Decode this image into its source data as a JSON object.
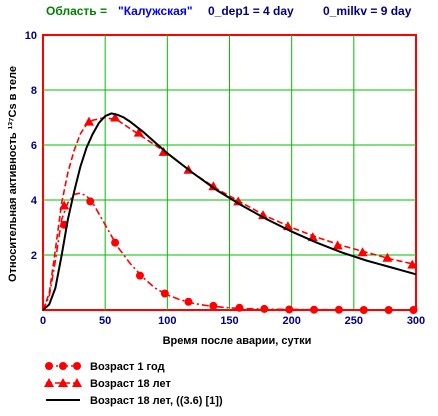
{
  "header": {
    "region_label": "Область = ",
    "region_value": "\"Калужская\"",
    "dep_label": "0_dep1 = 4 day",
    "milk_label": "0_milkv = 9 day"
  },
  "colors": {
    "header_label": "#008000",
    "header_value": "#0000ff",
    "header_param": "#000080",
    "axis_ticks": "#000080",
    "grid": "#00c000",
    "frame": "#ff0000",
    "series_red": "#ff0000",
    "series_black": "#000000"
  },
  "chart_data": {
    "type": "line",
    "xlabel": "Время после аварии, сутки",
    "ylabel": "Относительная активность ¹³⁷Cs в теле",
    "xlim": [
      0,
      300
    ],
    "ylim": [
      0,
      10
    ],
    "x_ticks": [
      0,
      50,
      100,
      150,
      200,
      250,
      300
    ],
    "y_ticks": [
      2,
      4,
      6,
      8,
      10
    ],
    "grid": true,
    "legend_position": "bottom",
    "series": [
      {
        "name": "Возраст 1 год",
        "style": "dash-dot",
        "marker": "circle",
        "color": "#ff0000",
        "x": [
          0,
          5,
          10,
          15,
          20,
          25,
          30,
          35,
          40,
          50,
          60,
          70,
          80,
          90,
          100,
          110,
          120,
          130,
          140,
          150,
          160,
          180,
          200,
          220,
          240,
          260,
          280,
          300
        ],
        "y": [
          0,
          0.5,
          1.8,
          3.3,
          3.9,
          4.2,
          4.25,
          4.15,
          3.9,
          3.1,
          2.3,
          1.7,
          1.2,
          0.8,
          0.55,
          0.38,
          0.25,
          0.17,
          0.12,
          0.08,
          0.05,
          0.03,
          0.02,
          0.01,
          0.01,
          0.0,
          0.0,
          0.0
        ],
        "marker_x": [
          17,
          38,
          58,
          78,
          98,
          117,
          137,
          158,
          178,
          198,
          218,
          238,
          258,
          278,
          298
        ],
        "marker_y": [
          3.1,
          3.95,
          2.45,
          1.25,
          0.6,
          0.3,
          0.15,
          0.08,
          0.04,
          0.02,
          0.01,
          0.01,
          0.0,
          0.0,
          0.0
        ]
      },
      {
        "name": "Возраст 18 лет",
        "style": "dash",
        "marker": "triangle",
        "color": "#ff0000",
        "x": [
          0,
          5,
          10,
          15,
          20,
          25,
          30,
          35,
          40,
          50,
          60,
          70,
          80,
          90,
          100,
          120,
          140,
          160,
          180,
          200,
          220,
          240,
          260,
          280,
          300
        ],
        "y": [
          0,
          0.6,
          2.2,
          3.9,
          5.0,
          5.8,
          6.4,
          6.75,
          6.9,
          7.0,
          6.9,
          6.6,
          6.3,
          6.0,
          5.7,
          5.0,
          4.4,
          3.9,
          3.4,
          3.0,
          2.65,
          2.35,
          2.1,
          1.85,
          1.65
        ],
        "marker_x": [
          17,
          37,
          58,
          77,
          97,
          117,
          137,
          157,
          177,
          197,
          217,
          237,
          257,
          277,
          297
        ],
        "marker_y": [
          3.8,
          6.85,
          7.0,
          6.45,
          5.75,
          5.1,
          4.5,
          3.95,
          3.45,
          3.05,
          2.65,
          2.35,
          2.1,
          1.9,
          1.65
        ]
      },
      {
        "name": "Возраст 18 лет,   ((3.6) [1])",
        "style": "solid",
        "marker": "none",
        "color": "#000000",
        "x": [
          0,
          5,
          10,
          15,
          20,
          25,
          30,
          35,
          40,
          45,
          50,
          55,
          60,
          65,
          70,
          80,
          90,
          100,
          120,
          140,
          160,
          180,
          200,
          220,
          240,
          260,
          280,
          300
        ],
        "y": [
          0,
          0.2,
          0.8,
          2.0,
          3.3,
          4.3,
          5.2,
          5.9,
          6.4,
          6.8,
          7.05,
          7.15,
          7.1,
          7.0,
          6.85,
          6.5,
          6.1,
          5.7,
          5.0,
          4.35,
          3.8,
          3.3,
          2.85,
          2.45,
          2.1,
          1.8,
          1.55,
          1.3
        ]
      }
    ]
  }
}
